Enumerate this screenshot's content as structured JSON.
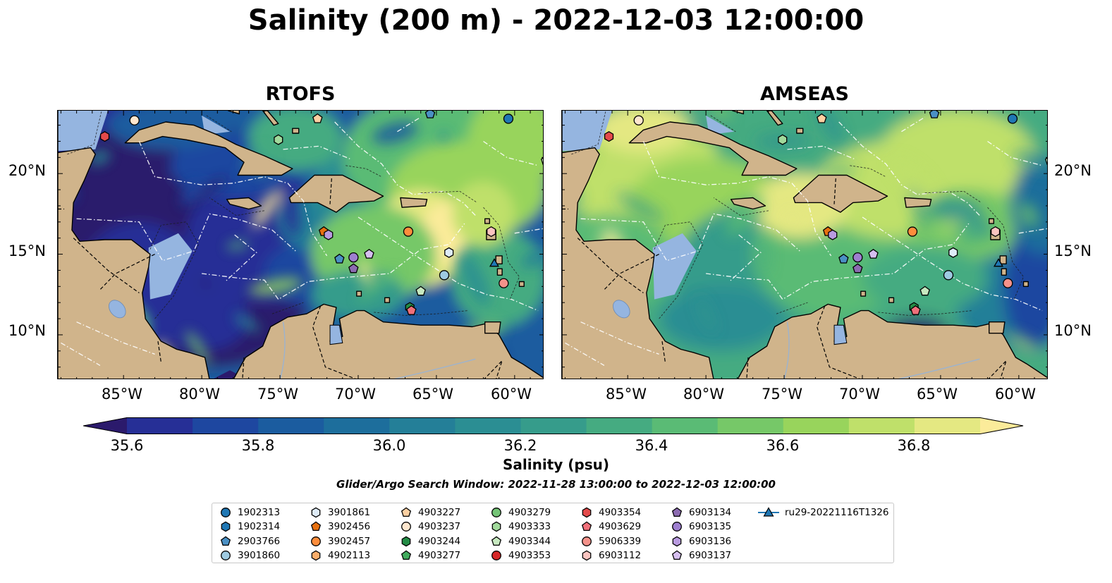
{
  "title": "Salinity (200 m) - 2022-12-03 12:00:00",
  "panels": [
    {
      "title": "RTOFS"
    },
    {
      "title": "AMSEAS"
    }
  ],
  "axes": {
    "x_ticks": [
      "85°W",
      "80°W",
      "75°W",
      "70°W",
      "65°W",
      "60°W"
    ],
    "y_ticks": [
      "20°N",
      "15°N",
      "10°N"
    ]
  },
  "colorbar": {
    "label": "Salinity (psu)",
    "ticks": [
      "35.6",
      "35.8",
      "36.0",
      "36.2",
      "36.4",
      "36.6",
      "36.8"
    ],
    "colors": [
      "#2b1a6c",
      "#262f96",
      "#1e47a0",
      "#1b5c9f",
      "#1d6e9c",
      "#247f98",
      "#2b8e93",
      "#369c8b",
      "#45ab81",
      "#5abb75",
      "#76c868",
      "#98d45c",
      "#bfe06a",
      "#e4e882",
      "#fbeb9a"
    ]
  },
  "search_window": "Glider/Argo Search Window: 2022-11-28 13:00:00 to 2022-12-03 12:00:00",
  "legend": {
    "items": [
      {
        "label": "1902313",
        "marker": "circle",
        "color": "#1f77b4"
      },
      {
        "label": "1902314",
        "marker": "hexagon",
        "color": "#1f77b4"
      },
      {
        "label": "2903766",
        "marker": "pentagon",
        "color": "#4a90c4"
      },
      {
        "label": "3901860",
        "marker": "circle",
        "color": "#9ecae1"
      },
      {
        "label": "3901861",
        "marker": "hexagon",
        "color": "#deebf7"
      },
      {
        "label": "3902456",
        "marker": "pentagon",
        "color": "#e6700f"
      },
      {
        "label": "3902457",
        "marker": "circle",
        "color": "#fd8d3c"
      },
      {
        "label": "4902113",
        "marker": "hexagon",
        "color": "#fdae6b"
      },
      {
        "label": "4903227",
        "marker": "pentagon",
        "color": "#fdd0a2"
      },
      {
        "label": "4903237",
        "marker": "circle",
        "color": "#fee6ce"
      },
      {
        "label": "4903244",
        "marker": "hexagon",
        "color": "#238b45"
      },
      {
        "label": "4903277",
        "marker": "pentagon",
        "color": "#41ab5d"
      },
      {
        "label": "4903279",
        "marker": "circle",
        "color": "#74c476"
      },
      {
        "label": "4903333",
        "marker": "hexagon",
        "color": "#a1d99b"
      },
      {
        "label": "4903344",
        "marker": "pentagon",
        "color": "#c7e9c0"
      },
      {
        "label": "4903353",
        "marker": "circle",
        "color": "#d62728"
      },
      {
        "label": "4903354",
        "marker": "hexagon",
        "color": "#e34a4a"
      },
      {
        "label": "4903629",
        "marker": "pentagon",
        "color": "#f0707a"
      },
      {
        "label": "5906339",
        "marker": "circle",
        "color": "#f4928a"
      },
      {
        "label": "6903112",
        "marker": "hexagon",
        "color": "#fbc4c0"
      },
      {
        "label": "6903134",
        "marker": "pentagon",
        "color": "#8c6bb1"
      },
      {
        "label": "6903135",
        "marker": "circle",
        "color": "#9e7fd0"
      },
      {
        "label": "6903136",
        "marker": "hexagon",
        "color": "#b99be0"
      },
      {
        "label": "6903137",
        "marker": "pentagon",
        "color": "#d6bff0"
      },
      {
        "label": "ru29-20221116T1326",
        "marker": "triangle-line",
        "color": "#1f77b4"
      }
    ]
  },
  "floats": [
    {
      "marker": "circle",
      "color": "#fee6ce",
      "lon": -84.3,
      "lat": 23.3
    },
    {
      "marker": "hexagon",
      "color": "#e34a4a",
      "lon": -86.2,
      "lat": 22.3
    },
    {
      "marker": "pentagon",
      "color": "#fdd0a2",
      "lon": -72.6,
      "lat": 23.4
    },
    {
      "marker": "hexagon",
      "color": "#a1d99b",
      "lon": -75.1,
      "lat": 22.1
    },
    {
      "marker": "pentagon",
      "color": "#4a90c4",
      "lon": -65.4,
      "lat": 23.7
    },
    {
      "marker": "circle",
      "color": "#1f77b4",
      "lon": -60.4,
      "lat": 23.4
    },
    {
      "marker": "pentagon",
      "color": "#c7e9c0",
      "lon": -58.0,
      "lat": 20.8
    },
    {
      "marker": "pentagon",
      "color": "#e6700f",
      "lon": -72.2,
      "lat": 16.4
    },
    {
      "marker": "hexagon",
      "color": "#b99be0",
      "lon": -71.9,
      "lat": 16.2
    },
    {
      "marker": "circle",
      "color": "#fd8d3c",
      "lon": -66.8,
      "lat": 16.4
    },
    {
      "marker": "hexagon",
      "color": "#deebf7",
      "lon": -64.2,
      "lat": 15.1
    },
    {
      "marker": "circle",
      "color": "#9e7fd0",
      "lon": -70.3,
      "lat": 14.8
    },
    {
      "marker": "pentagon",
      "color": "#d6bff0",
      "lon": -69.3,
      "lat": 15.0
    },
    {
      "marker": "pentagon",
      "color": "#4a90c4",
      "lon": -71.2,
      "lat": 14.7
    },
    {
      "marker": "pentagon",
      "color": "#8c6bb1",
      "lon": -70.3,
      "lat": 14.1
    },
    {
      "marker": "circle",
      "color": "#9ecae1",
      "lon": -64.5,
      "lat": 13.7
    },
    {
      "marker": "pentagon",
      "color": "#c7e9c0",
      "lon": -66.0,
      "lat": 12.7
    },
    {
      "marker": "hexagon",
      "color": "#238b45",
      "lon": -66.7,
      "lat": 11.7
    },
    {
      "marker": "pentagon",
      "color": "#f0707a",
      "lon": -66.6,
      "lat": 11.5
    },
    {
      "marker": "circle",
      "color": "#f4928a",
      "lon": -60.7,
      "lat": 13.2
    },
    {
      "marker": "triangle",
      "color": "#1f77b4",
      "lon": -61.3,
      "lat": 14.4
    },
    {
      "marker": "hexagon",
      "color": "#fbc4c0",
      "lon": -61.5,
      "lat": 16.4
    }
  ]
}
